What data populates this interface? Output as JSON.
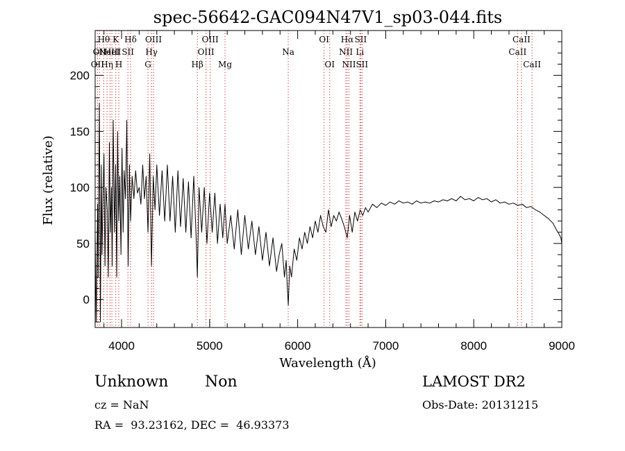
{
  "chart_data": {
    "type": "line",
    "title": "spec-56642-GAC094N47V1_sp03-044.fits",
    "xlabel": "Wavelength (Å)",
    "ylabel": "Flux (relative)",
    "xlim": [
      3700,
      9000
    ],
    "ylim": [
      -25,
      240
    ],
    "xticks": [
      4000,
      5000,
      6000,
      7000,
      8000,
      9000
    ],
    "yticks": [
      0,
      50,
      100,
      150,
      200
    ],
    "grid": false,
    "series": [
      {
        "color": "#000000",
        "x": [
          3700,
          3712,
          3728,
          3734,
          3748,
          3760,
          3770,
          3778,
          3790,
          3800,
          3812,
          3822,
          3838,
          3850,
          3862,
          3873,
          3885,
          3893,
          3905,
          3920,
          3933,
          3945,
          3955,
          3968,
          3980,
          3993,
          4005,
          4018,
          4030,
          4045,
          4060,
          4075,
          4090,
          4102,
          4120,
          4140,
          4160,
          4180,
          4200,
          4220,
          4240,
          4260,
          4280,
          4300,
          4320,
          4340,
          4360,
          4380,
          4400,
          4430,
          4460,
          4490,
          4520,
          4550,
          4580,
          4610,
          4640,
          4670,
          4700,
          4730,
          4760,
          4790,
          4820,
          4850,
          4861,
          4880,
          4910,
          4940,
          4970,
          5000,
          5030,
          5060,
          5090,
          5120,
          5150,
          5175,
          5200,
          5240,
          5280,
          5320,
          5360,
          5400,
          5440,
          5480,
          5520,
          5560,
          5600,
          5640,
          5680,
          5720,
          5760,
          5790,
          5820,
          5850,
          5870,
          5880,
          5893,
          5910,
          5930,
          5960,
          5990,
          6020,
          6050,
          6080,
          6110,
          6140,
          6170,
          6200,
          6230,
          6260,
          6290,
          6320,
          6350,
          6380,
          6410,
          6440,
          6470,
          6500,
          6530,
          6563,
          6590,
          6620,
          6650,
          6680,
          6710,
          6740,
          6770,
          6800,
          6850,
          6900,
          6950,
          7000,
          7050,
          7100,
          7150,
          7200,
          7250,
          7300,
          7350,
          7400,
          7450,
          7500,
          7550,
          7600,
          7650,
          7700,
          7750,
          7800,
          7850,
          7900,
          7950,
          8000,
          8050,
          8100,
          8150,
          8200,
          8250,
          8300,
          8350,
          8400,
          8450,
          8500,
          8550,
          8600,
          8650,
          8700,
          8750,
          8800,
          8850,
          8900,
          8940,
          8970,
          8990,
          9000
        ],
        "y": [
          60,
          -20,
          85,
          20,
          175,
          -20,
          120,
          40,
          95,
          130,
          30,
          100,
          80,
          20,
          140,
          60,
          100,
          30,
          160,
          60,
          120,
          20,
          150,
          70,
          110,
          40,
          135,
          60,
          115,
          90,
          160,
          30,
          120,
          70,
          110,
          90,
          115,
          95,
          100,
          85,
          120,
          90,
          110,
          60,
          130,
          30,
          110,
          80,
          120,
          75,
          115,
          70,
          120,
          70,
          110,
          60,
          115,
          65,
          108,
          60,
          105,
          55,
          110,
          50,
          20,
          100,
          60,
          100,
          50,
          95,
          60,
          95,
          50,
          85,
          55,
          85,
          50,
          75,
          45,
          80,
          40,
          75,
          45,
          70,
          40,
          65,
          35,
          60,
          30,
          55,
          25,
          40,
          50,
          20,
          35,
          15,
          -5,
          30,
          20,
          45,
          35,
          55,
          45,
          60,
          50,
          65,
          55,
          70,
          60,
          75,
          65,
          60,
          80,
          65,
          75,
          70,
          78,
          72,
          65,
          55,
          75,
          60,
          78,
          70,
          80,
          75,
          82,
          78,
          85,
          82,
          86,
          84,
          87,
          85,
          88,
          86,
          87,
          85,
          88,
          86,
          87,
          86,
          88,
          87,
          89,
          88,
          90,
          88,
          92,
          89,
          90,
          88,
          91,
          89,
          90,
          87,
          89,
          86,
          87,
          85,
          86,
          84,
          85,
          82,
          83,
          80,
          78,
          75,
          72,
          68,
          62,
          58,
          55,
          50
        ]
      }
    ],
    "lines": [
      {
        "wl": 3727,
        "label": "OII",
        "row": 2
      },
      {
        "wl": 3750,
        "label": "OII",
        "row": 1
      },
      {
        "wl": 3798,
        "label": "Hθ",
        "row": 0
      },
      {
        "wl": 3835,
        "label": "Hη",
        "row": 2
      },
      {
        "wl": 3869,
        "label": "NeIII",
        "row": 1
      },
      {
        "wl": 3890,
        "label": "HeI",
        "row": 1
      },
      {
        "wl": 3934,
        "label": "K",
        "row": 0
      },
      {
        "wl": 3969,
        "label": "H",
        "row": 2
      },
      {
        "wl": 4072,
        "label": "SII",
        "row": 1
      },
      {
        "wl": 4102,
        "label": "Hδ",
        "row": 0
      },
      {
        "wl": 4300,
        "label": "G",
        "row": 2
      },
      {
        "wl": 4340,
        "label": "Hγ",
        "row": 1
      },
      {
        "wl": 4363,
        "label": "OIII",
        "row": 0
      },
      {
        "wl": 4861,
        "label": "Hβ",
        "row": 2
      },
      {
        "wl": 4959,
        "label": "OIII",
        "row": 1
      },
      {
        "wl": 5007,
        "label": "OIII",
        "row": 0
      },
      {
        "wl": 5175,
        "label": "Mg",
        "row": 2
      },
      {
        "wl": 5893,
        "label": "Na",
        "row": 1
      },
      {
        "wl": 6300,
        "label": "OI",
        "row": 0
      },
      {
        "wl": 6364,
        "label": "OI",
        "row": 2
      },
      {
        "wl": 6548,
        "label": "NII",
        "row": 1
      },
      {
        "wl": 6563,
        "label": "Hα",
        "row": 0
      },
      {
        "wl": 6583,
        "label": "NII",
        "row": 2
      },
      {
        "wl": 6707,
        "label": "Li",
        "row": 1
      },
      {
        "wl": 6716,
        "label": "SII",
        "row": 0
      },
      {
        "wl": 6731,
        "label": "SII",
        "row": 2
      },
      {
        "wl": 8498,
        "label": "CaII",
        "row": 1
      },
      {
        "wl": 8542,
        "label": "CaII",
        "row": 0
      },
      {
        "wl": 8662,
        "label": "CaII",
        "row": 2
      }
    ]
  },
  "info": {
    "class": "Unknown",
    "subclass": "Non",
    "survey": "LAMOST DR2",
    "cz": "cz = NaN",
    "obs_date": "Obs-Date: 20131215",
    "radec": "RA =  93.23162, DEC =  46.93373"
  }
}
